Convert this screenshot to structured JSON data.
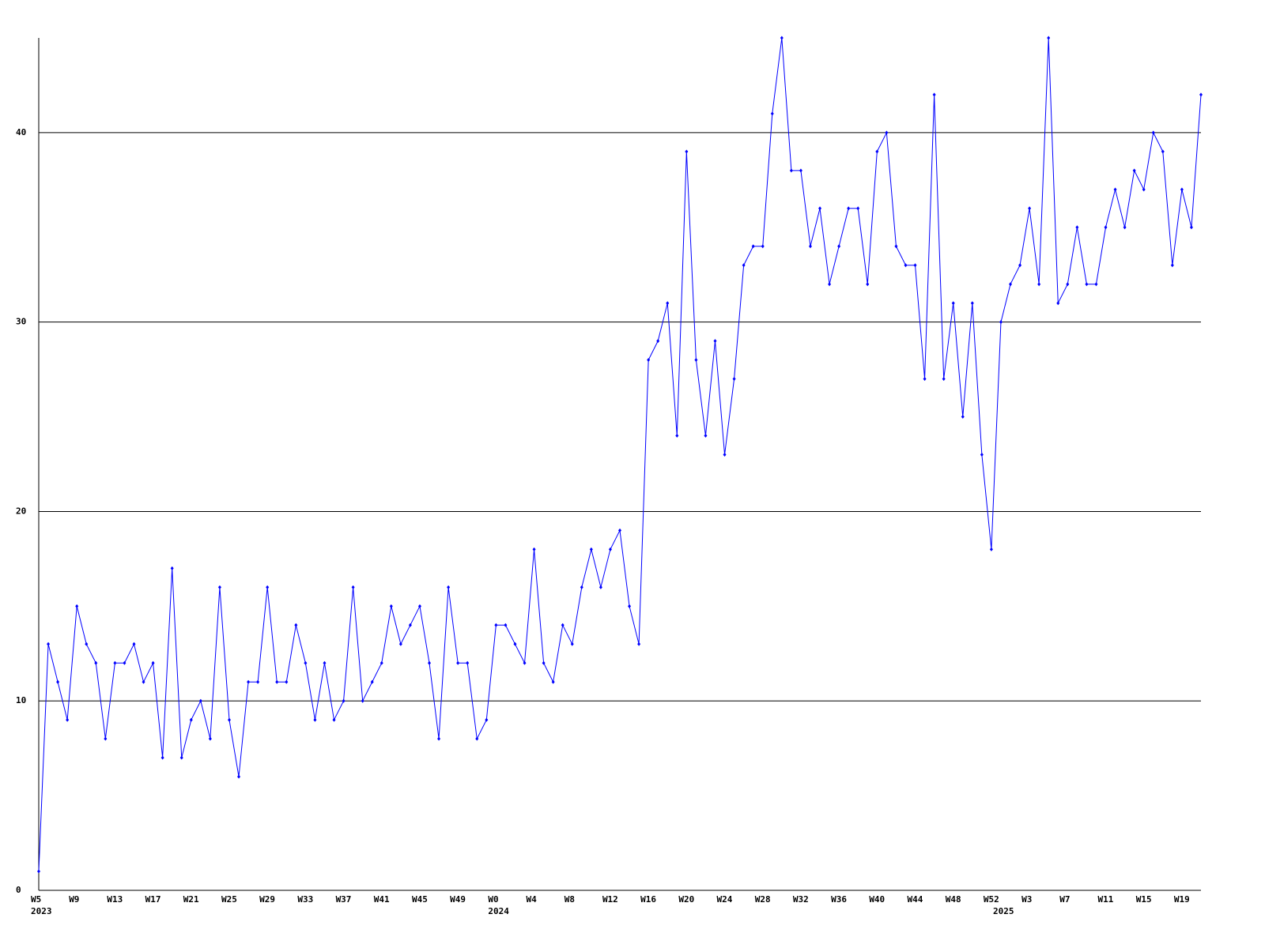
{
  "chart_data": {
    "type": "line",
    "color": "#0000ff",
    "grid": true,
    "ylim": [
      0,
      45
    ],
    "yticks": [
      0,
      10,
      20,
      30,
      40
    ],
    "categories": [
      "W5",
      null,
      null,
      null,
      "W9",
      null,
      null,
      null,
      "W13",
      null,
      null,
      null,
      "W17",
      null,
      null,
      null,
      "W21",
      null,
      null,
      null,
      "W25",
      null,
      null,
      null,
      "W29",
      null,
      null,
      null,
      "W33",
      null,
      null,
      null,
      "W37",
      null,
      null,
      null,
      "W41",
      null,
      null,
      null,
      "W45",
      null,
      null,
      null,
      "W49",
      null,
      null,
      null,
      "W0",
      null,
      null,
      null,
      "W4",
      null,
      null,
      null,
      "W8",
      null,
      null,
      null,
      "W12",
      null,
      null,
      null,
      "W16",
      null,
      null,
      null,
      "W20",
      null,
      null,
      null,
      "W24",
      null,
      null,
      null,
      "W28",
      null,
      null,
      null,
      "W32",
      null,
      null,
      null,
      "W36",
      null,
      null,
      null,
      "W40",
      null,
      null,
      null,
      "W44",
      null,
      null,
      null,
      "W48",
      null,
      null,
      null,
      "W52",
      null,
      null,
      null,
      "W3",
      null,
      null,
      null,
      "W7",
      null,
      null,
      null,
      "W11",
      null,
      null,
      null,
      "W15",
      null,
      null,
      null,
      "W19",
      null,
      null
    ],
    "category_years": [
      "2023",
      null,
      null,
      null,
      null,
      null,
      null,
      null,
      null,
      null,
      null,
      null,
      null,
      null,
      null,
      null,
      null,
      null,
      null,
      null,
      null,
      null,
      null,
      null,
      null,
      null,
      null,
      null,
      null,
      null,
      null,
      null,
      null,
      null,
      null,
      null,
      null,
      null,
      null,
      null,
      null,
      null,
      null,
      null,
      null,
      null,
      null,
      null,
      "2024",
      null,
      null,
      null,
      null,
      null,
      null,
      null,
      null,
      null,
      null,
      null,
      null,
      null,
      null,
      null,
      null,
      null,
      null,
      null,
      null,
      null,
      null,
      null,
      null,
      null,
      null,
      null,
      null,
      null,
      null,
      null,
      null,
      null,
      null,
      null,
      null,
      null,
      null,
      null,
      null,
      null,
      null,
      null,
      null,
      null,
      null,
      null,
      null,
      null,
      null,
      null,
      null,
      "2025",
      null,
      null,
      null,
      null,
      null,
      null,
      null,
      null,
      null,
      null,
      null,
      null,
      null,
      null,
      null,
      null,
      null,
      null,
      null,
      null,
      null
    ],
    "values": [
      1,
      13,
      11,
      9,
      15,
      13,
      12,
      8,
      12,
      12,
      13,
      11,
      12,
      7,
      17,
      7,
      9,
      10,
      8,
      16,
      9,
      6,
      11,
      11,
      16,
      11,
      11,
      14,
      12,
      9,
      12,
      9,
      10,
      16,
      10,
      11,
      12,
      15,
      13,
      14,
      15,
      12,
      8,
      16,
      12,
      12,
      8,
      9,
      14,
      14,
      13,
      12,
      18,
      12,
      11,
      14,
      13,
      16,
      18,
      16,
      18,
      19,
      15,
      13,
      28,
      29,
      31,
      24,
      39,
      28,
      24,
      29,
      23,
      27,
      33,
      34,
      34,
      41,
      45,
      38,
      38,
      34,
      36,
      32,
      34,
      36,
      36,
      32,
      39,
      40,
      34,
      33,
      33,
      27,
      42,
      27,
      31,
      25,
      31,
      23,
      18,
      30,
      32,
      33,
      36,
      32,
      45,
      31,
      32,
      35,
      32,
      32,
      35,
      37,
      35,
      38,
      37,
      40,
      39,
      33,
      37,
      35,
      42
    ]
  }
}
